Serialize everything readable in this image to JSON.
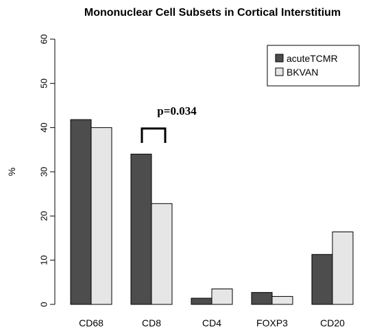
{
  "chart_data": {
    "type": "bar",
    "title": "Mononuclear Cell Subsets in Cortical Interstitium",
    "ylabel": "%",
    "xlabel": "",
    "ylim": [
      0,
      60
    ],
    "yticks": [
      "0",
      "10",
      "20",
      "30",
      "40",
      "50",
      "60"
    ],
    "categories": [
      "CD68",
      "CD8",
      "CD4",
      "FOXP3",
      "CD20"
    ],
    "series": [
      {
        "name": "acuteTCMR",
        "color": "#4d4d4d",
        "values": [
          41.8,
          34.0,
          1.4,
          2.7,
          11.3
        ]
      },
      {
        "name": "BKVAN",
        "color": "#e6e6e6",
        "values": [
          40.0,
          22.8,
          3.5,
          1.8,
          16.4
        ]
      }
    ],
    "legend_position": "top-right",
    "annotation": {
      "text": "p=0.034",
      "category": "CD8"
    },
    "grid": false
  }
}
